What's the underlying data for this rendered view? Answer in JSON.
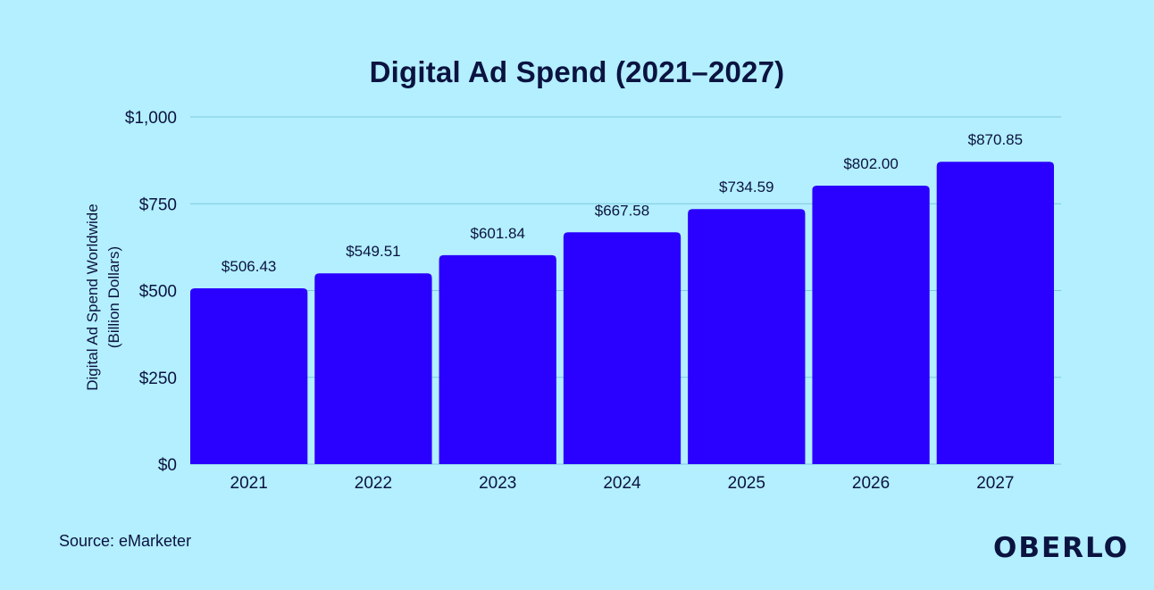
{
  "chart_data": {
    "type": "bar",
    "title": "Digital Ad Spend (2021–2027)",
    "categories": [
      "2021",
      "2022",
      "2023",
      "2024",
      "2025",
      "2026",
      "2027"
    ],
    "values": [
      506.43,
      549.51,
      601.84,
      667.58,
      734.59,
      802.0,
      870.85
    ],
    "data_labels": [
      "$506.43",
      "$549.51",
      "$601.84",
      "$667.58",
      "$734.59",
      "$802.00",
      "$870.85"
    ],
    "ylabel_lines": [
      "Digital Ad Spend Worldwide",
      "(Billion Dollars)"
    ],
    "xlabel": "",
    "ylim": [
      0,
      1000
    ],
    "yticks": [
      0,
      250,
      500,
      750,
      1000
    ],
    "ytick_labels": [
      "$0",
      "$250",
      "$500",
      "$750",
      "$1,000"
    ],
    "grid": true,
    "bar_color": "#2a00ff",
    "grid_color": "#7fc8dc"
  },
  "footer": {
    "source": "Source: eMarketer",
    "logo": "OBERLO"
  }
}
